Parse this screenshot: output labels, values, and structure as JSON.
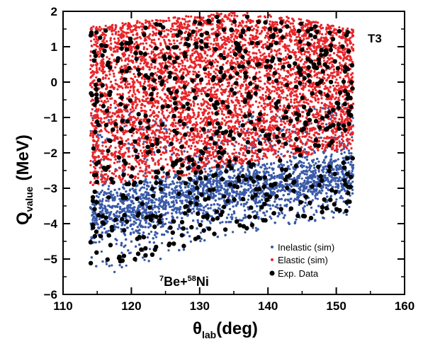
{
  "chart_data": {
    "type": "scatter",
    "title": "",
    "panel_label": "T3",
    "reaction_label": {
      "mass_a": "7",
      "nucleus_a": "Be+",
      "mass_b": "58",
      "nucleus_b": "Ni"
    },
    "xlabel": {
      "symbol": "θ",
      "subscript": "lab",
      "unit": "(deg)"
    },
    "ylabel": {
      "symbol": "Q",
      "subscript": "value",
      "unit": "(MeV)"
    },
    "xlim": [
      110,
      160
    ],
    "ylim": [
      -6,
      2
    ],
    "x_ticks": [
      "110",
      "120",
      "130",
      "140",
      "150",
      "160"
    ],
    "y_ticks": [
      "−6",
      "−5",
      "−4",
      "−3",
      "−2",
      "−1",
      "0",
      "1",
      "2"
    ],
    "grid": false,
    "legend_position": "bottom-right",
    "series": [
      {
        "name": "Inelastic (sim)",
        "color": "#3a5aa8",
        "marker": "small-dot",
        "x_range": [
          114,
          152.5
        ],
        "y_upper": [
          [
            114,
            -0.6
          ],
          [
            120,
            -0.8
          ],
          [
            130,
            -1.2
          ],
          [
            140,
            -0.8
          ],
          [
            152,
            -0.6
          ]
        ],
        "y_lower": [
          [
            114,
            -5.5
          ],
          [
            120,
            -5.3
          ],
          [
            130,
            -4.6
          ],
          [
            140,
            -4.2
          ],
          [
            152,
            -3.8
          ]
        ],
        "band_center": [
          [
            114,
            -3.7
          ],
          [
            120,
            -3.6
          ],
          [
            130,
            -3.1
          ],
          [
            140,
            -2.9
          ],
          [
            152,
            -2.6
          ]
        ]
      },
      {
        "name": "Elastic (sim)",
        "color": "#e8252a",
        "marker": "small-dot",
        "x_range": [
          114,
          152.5
        ],
        "y_upper": [
          [
            114,
            1.6
          ],
          [
            125,
            1.8
          ],
          [
            135,
            2.0
          ],
          [
            145,
            1.8
          ],
          [
            152,
            1.5
          ]
        ],
        "y_lower": [
          [
            114,
            -3.0
          ],
          [
            120,
            -2.8
          ],
          [
            130,
            -2.6
          ],
          [
            140,
            -2.2
          ],
          [
            152,
            -1.9
          ]
        ]
      },
      {
        "name": "Exp. Data",
        "color": "#000000",
        "marker": "large-dot",
        "x_range": [
          114,
          152.5
        ],
        "y_upper": [
          [
            114,
            1.5
          ],
          [
            125,
            1.7
          ],
          [
            135,
            1.9
          ],
          [
            145,
            1.7
          ],
          [
            152,
            1.4
          ]
        ],
        "y_lower": [
          [
            114,
            -5.3
          ],
          [
            120,
            -5.1
          ],
          [
            130,
            -4.5
          ],
          [
            140,
            -4.0
          ],
          [
            152,
            -3.7
          ]
        ]
      }
    ]
  }
}
